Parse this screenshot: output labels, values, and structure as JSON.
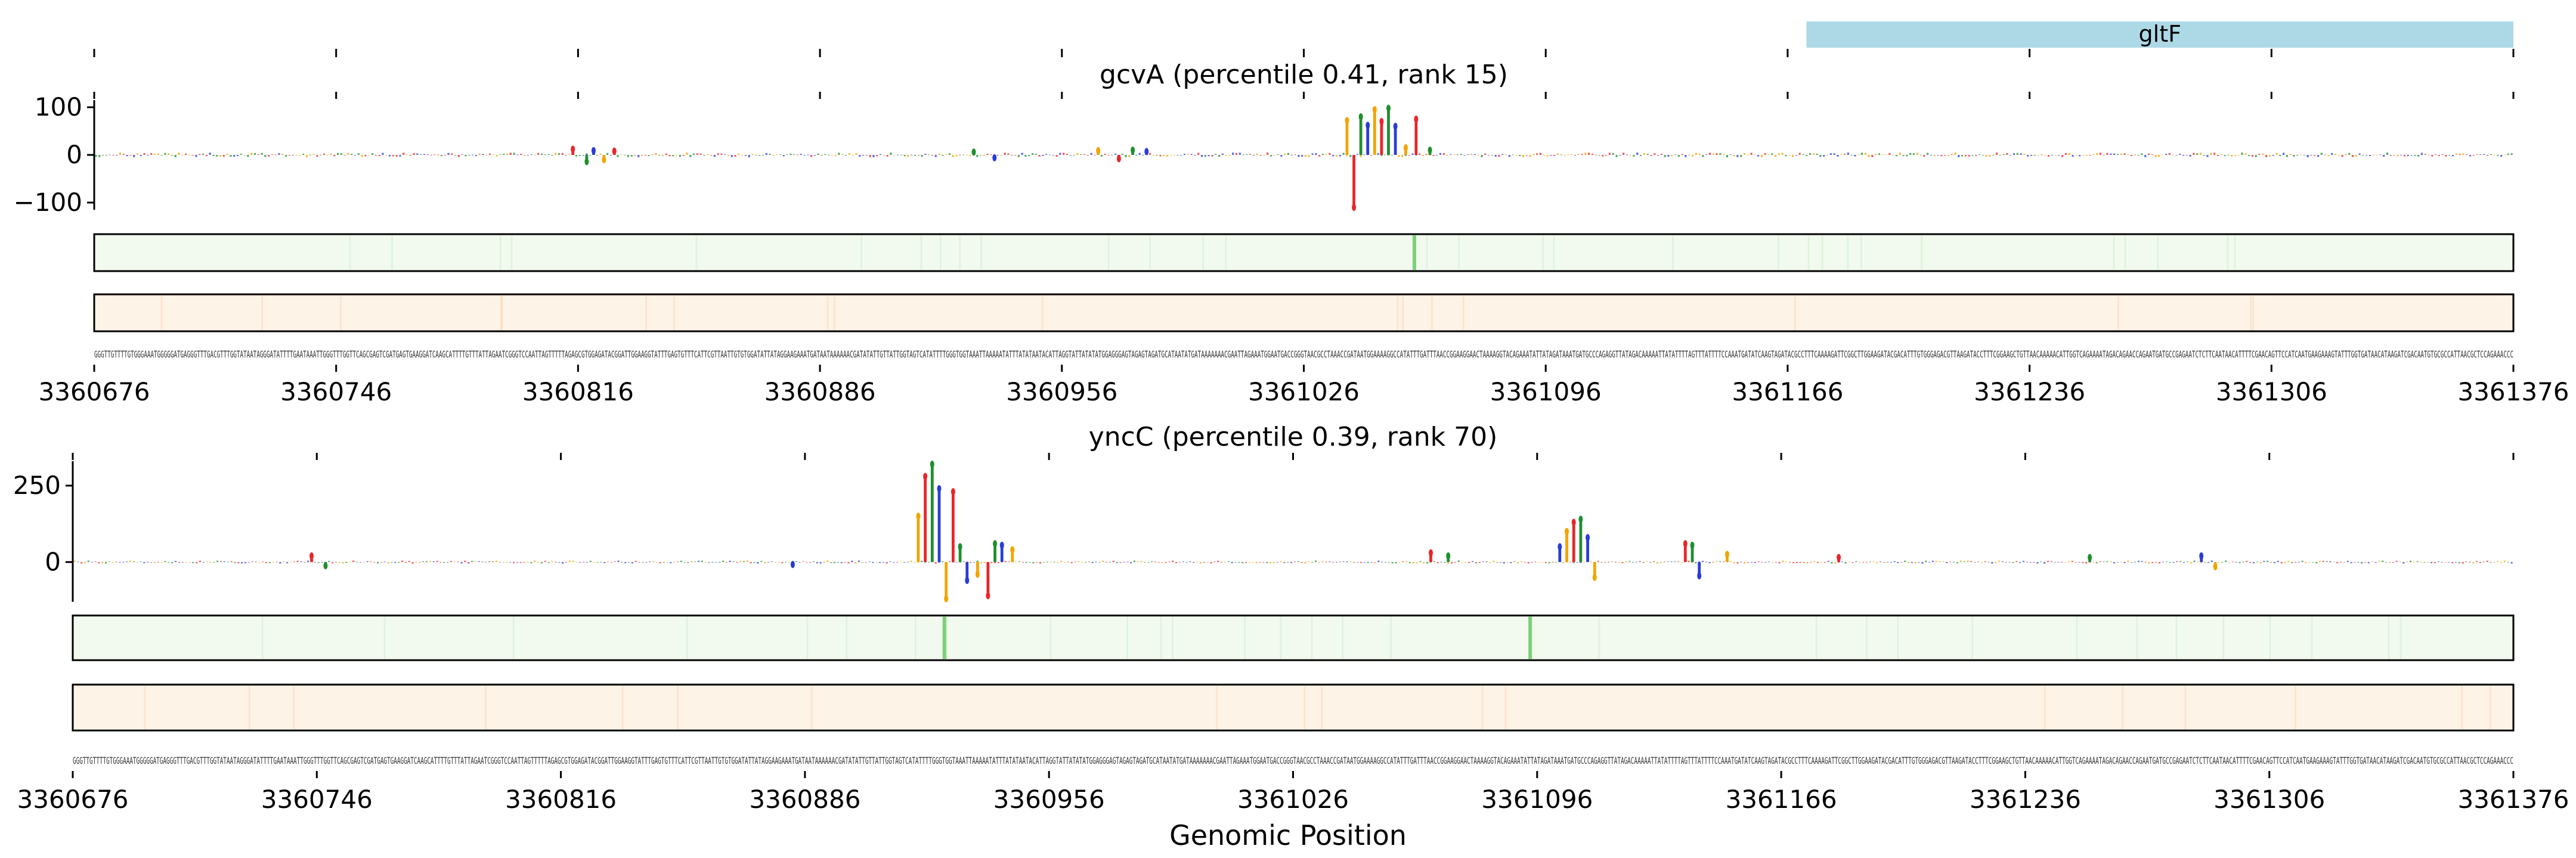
{
  "chart_data": [
    {
      "type": "bar",
      "kind": "genome-annotation",
      "gene_labels": [
        "gltF"
      ],
      "gene_span": [
        3361168,
        3361376
      ],
      "gene_color": "#add8e6"
    },
    {
      "type": "bar",
      "kind": "sequence-attribution",
      "title": "gcvA (percentile 0.41, rank 15)",
      "yticks": [
        100,
        0,
        -100
      ],
      "ylim": [
        -115,
        115
      ],
      "x_range": [
        3360676,
        3361376
      ],
      "xtick_labels": [
        "3360676",
        "3360746",
        "3360816",
        "3360886",
        "3360956",
        "3361026",
        "3361096",
        "3361166",
        "3361236",
        "3361306",
        "3361376"
      ],
      "peaks": [
        {
          "x": 3360814,
          "value": 12
        },
        {
          "x": 3360818,
          "value": -14
        },
        {
          "x": 3360820,
          "value": 9
        },
        {
          "x": 3360823,
          "value": -10
        },
        {
          "x": 3360826,
          "value": 8
        },
        {
          "x": 3360930,
          "value": 6
        },
        {
          "x": 3360936,
          "value": -6
        },
        {
          "x": 3360966,
          "value": 9
        },
        {
          "x": 3360972,
          "value": -8
        },
        {
          "x": 3360976,
          "value": 10
        },
        {
          "x": 3360980,
          "value": 7
        },
        {
          "x": 3361038,
          "value": 72
        },
        {
          "x": 3361040,
          "value": -110
        },
        {
          "x": 3361042,
          "value": 80
        },
        {
          "x": 3361044,
          "value": 62
        },
        {
          "x": 3361046,
          "value": 95
        },
        {
          "x": 3361048,
          "value": 70
        },
        {
          "x": 3361050,
          "value": 98
        },
        {
          "x": 3361052,
          "value": 60
        },
        {
          "x": 3361055,
          "value": 15
        },
        {
          "x": 3361058,
          "value": 75
        },
        {
          "x": 3361062,
          "value": 10
        }
      ],
      "track_highlights": [
        3361058
      ]
    },
    {
      "type": "bar",
      "kind": "sequence-attribution",
      "title": "yncC (percentile 0.39, rank 70)",
      "yticks": [
        250,
        0
      ],
      "ylim": [
        -130,
        330
      ],
      "x_range": [
        3360676,
        3361376
      ],
      "xtick_labels": [
        "3360676",
        "3360746",
        "3360816",
        "3360886",
        "3360956",
        "3361026",
        "3361096",
        "3361166",
        "3361236",
        "3361306",
        "3361376"
      ],
      "peaks": [
        {
          "x": 3360744,
          "value": 20
        },
        {
          "x": 3360748,
          "value": -12
        },
        {
          "x": 3360882,
          "value": -8
        },
        {
          "x": 3360918,
          "value": 150
        },
        {
          "x": 3360920,
          "value": 280
        },
        {
          "x": 3360922,
          "value": 320
        },
        {
          "x": 3360924,
          "value": 240
        },
        {
          "x": 3360926,
          "value": -120
        },
        {
          "x": 3360928,
          "value": 230
        },
        {
          "x": 3360930,
          "value": 50
        },
        {
          "x": 3360932,
          "value": -60
        },
        {
          "x": 3360935,
          "value": -40
        },
        {
          "x": 3360938,
          "value": -110
        },
        {
          "x": 3360940,
          "value": 60
        },
        {
          "x": 3360942,
          "value": 55
        },
        {
          "x": 3360945,
          "value": 40
        },
        {
          "x": 3361065,
          "value": 30
        },
        {
          "x": 3361070,
          "value": 20
        },
        {
          "x": 3361102,
          "value": 50
        },
        {
          "x": 3361104,
          "value": 100
        },
        {
          "x": 3361106,
          "value": 130
        },
        {
          "x": 3361108,
          "value": 140
        },
        {
          "x": 3361110,
          "value": 80
        },
        {
          "x": 3361112,
          "value": -50
        },
        {
          "x": 3361138,
          "value": 60
        },
        {
          "x": 3361140,
          "value": 55
        },
        {
          "x": 3361142,
          "value": -45
        },
        {
          "x": 3361150,
          "value": 25
        },
        {
          "x": 3361182,
          "value": 15
        },
        {
          "x": 3361254,
          "value": 15
        },
        {
          "x": 3361286,
          "value": 20
        },
        {
          "x": 3361290,
          "value": -15
        }
      ],
      "track_highlights": [
        3360926,
        3361094
      ]
    }
  ],
  "xlabel": "Genomic Position",
  "sequence": "GGGTTGTTTTGTGGGAAATGGGGGATGAGGGTTTGACGTTTGGTATAATAGGGATATTTTGAATAAATTGGGTTTGGTTCAGCGAGTCGATGAGTGAAGGATCAAGCATTTTGTTTATTAGAATCGGGTCCAATTAGTTTTTAGAGCGTGGAGATACGGATTGGAAGGTATTTGAGTGTTTCATTCGTTAATTGTGTGGATATTATAGGAAGAAATGATAATAAAAAACGATATATTGTTATTGGTAGTCATATTTTGGGTGGTAAATTAAAAATATTTATATAATACATTAGGTATTATATATGGAGGGAGTAGAGTAGATGCATAATATGATAAAAAAACGAATTAGAAATGGAATGACCGGGTAACGCCTAAACCGATAATGGAAAAGGCCATATTTGATTTAACCGGAAGGAACTAAAAGGTACAGAAATATTATAGATAAATGATGCCCAGAGGTTATAGACAAAAATTATATTTTAGTTTATTTTCCAAATGATATCAAGTAGATACGCCTTTCAAAAGATTCGGCTTGGAAGATACGACATTTGTGGGAGACGTTAAGATACCTTTCGGAAGCTGTTAACAAAAACATTGGTCAGAAAATAGACAGAACCAGAATGATGCCGAGAATCTCTTCAATAACATTTTCGAACAGTTCCATCAATGAAGAAAGTATTTGGTGATAACATAAGATCGACAATGTGCGCCATTAACGCTCCAGAAACCC"
}
